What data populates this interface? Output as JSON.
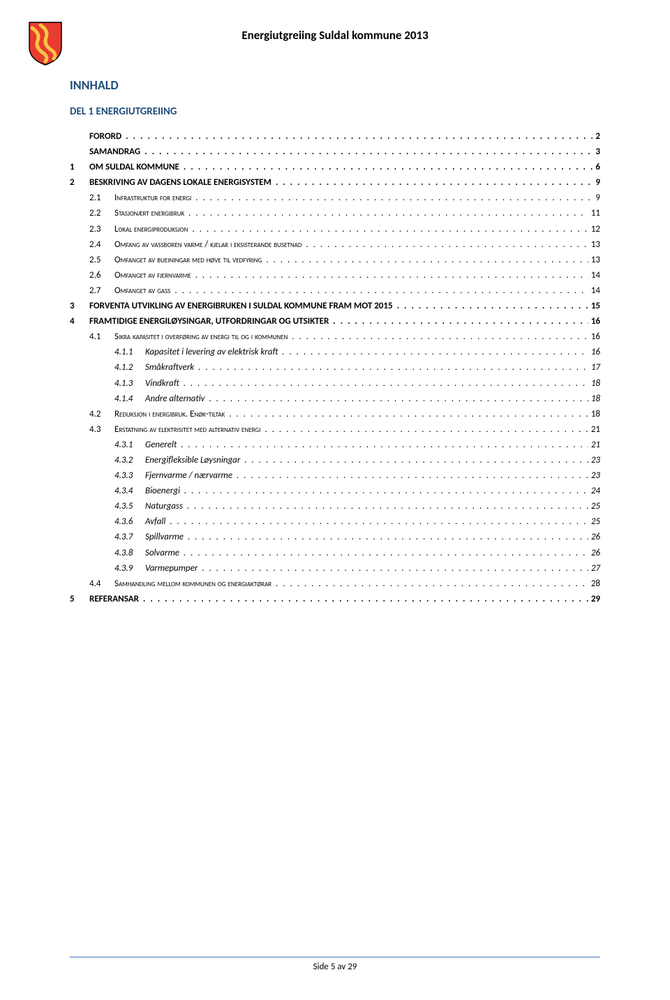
{
  "header": {
    "title": "Energiutgreiing Suldal kommune 2013"
  },
  "logo": {
    "shield_fill": "#e73c2f",
    "wave_fill": "#f9c642"
  },
  "titles": {
    "innhald": "INNHALD",
    "del": "DEL 1  ENERGIUTGREIING"
  },
  "toc": [
    {
      "level": 0,
      "num": "",
      "text": "FORORD",
      "page": "2"
    },
    {
      "level": 0,
      "num": "",
      "text": "SAMANDRAG",
      "page": "3"
    },
    {
      "level": 0,
      "num": "1",
      "text": "OM SULDAL KOMMUNE",
      "page": "6"
    },
    {
      "level": 0,
      "num": "2",
      "text": "BESKRIVING AV DAGENS LOKALE ENERGISYSTEM",
      "page": "9"
    },
    {
      "level": 1,
      "num": "2.1",
      "text": "Infrastruktur for energi",
      "page": "9"
    },
    {
      "level": 1,
      "num": "2.2",
      "text": "Stasjonært energibruk",
      "page": "11"
    },
    {
      "level": 1,
      "num": "2.3",
      "text": "Lokal energiproduksjon",
      "page": "12"
    },
    {
      "level": 1,
      "num": "2.4",
      "text": "Omfang av vassboren varme / kjelar i eksisterande busetnad",
      "page": "13"
    },
    {
      "level": 1,
      "num": "2.5",
      "text": "Omfanget av bueiningar med høve til vedfyring",
      "page": "13"
    },
    {
      "level": 1,
      "num": "2.6",
      "text": "Omfanget av fjernvarme",
      "page": "14"
    },
    {
      "level": 1,
      "num": "2.7",
      "text": "Omfanget av gass",
      "page": "14"
    },
    {
      "level": 0,
      "num": "3",
      "text": "FORVENTA UTVIKLING AV ENERGIBRUKEN I SULDAL KOMMUNE FRAM MOT 2015",
      "page": "15"
    },
    {
      "level": 0,
      "num": "4",
      "text": "FRAMTIDIGE ENERGILØYSINGAR, UTFORDRINGAR OG UTSIKTER",
      "page": "16"
    },
    {
      "level": 1,
      "num": "4.1",
      "text": "Sikra kapasitet i overføring av energi til og i kommunen",
      "page": "16"
    },
    {
      "level": 2,
      "num": "4.1.1",
      "text": "Kapasitet i levering av elektrisk kraft",
      "page": "16"
    },
    {
      "level": 2,
      "num": "4.1.2",
      "text": "Småkraftverk",
      "page": "17"
    },
    {
      "level": 2,
      "num": "4.1.3",
      "text": "Vindkraft",
      "page": "18"
    },
    {
      "level": 2,
      "num": "4.1.4",
      "text": "Andre alternativ",
      "page": "18"
    },
    {
      "level": 1,
      "num": "4.2",
      "text": "Reduksjon i energibruk. Enøk-tiltak",
      "page": "18"
    },
    {
      "level": 1,
      "num": "4.3",
      "text": "Erstatning av elektrisitet med alternativ energi",
      "page": "21"
    },
    {
      "level": 2,
      "num": "4.3.1",
      "text": "Generelt",
      "page": "21"
    },
    {
      "level": 2,
      "num": "4.3.2",
      "text": "Energifleksible Løysningar",
      "page": "23"
    },
    {
      "level": 2,
      "num": "4.3.3",
      "text": "Fjernvarme / nærvarme",
      "page": "23"
    },
    {
      "level": 2,
      "num": "4.3.4",
      "text": "Bioenergi",
      "page": "24"
    },
    {
      "level": 2,
      "num": "4.3.5",
      "text": "Naturgass",
      "page": "25"
    },
    {
      "level": 2,
      "num": "4.3.6",
      "text": "Avfall",
      "page": "25"
    },
    {
      "level": 2,
      "num": "4.3.7",
      "text": "Spillvarme",
      "page": "26"
    },
    {
      "level": 2,
      "num": "4.3.8",
      "text": "Solvarme",
      "page": "26"
    },
    {
      "level": 2,
      "num": "4.3.9",
      "text": "Varmepumper",
      "page": "27"
    },
    {
      "level": 1,
      "num": "4.4",
      "text": "Samhandling mellom kommunen og energiaktørar",
      "page": "28"
    },
    {
      "level": 0,
      "num": "5",
      "text": "REFERANSAR",
      "page": "29"
    }
  ],
  "footer": {
    "text": "Side 5 av 29"
  },
  "colors": {
    "heading": "#1f4e79",
    "footer_line": "#4472c4",
    "text": "#000000",
    "background": "#ffffff"
  }
}
